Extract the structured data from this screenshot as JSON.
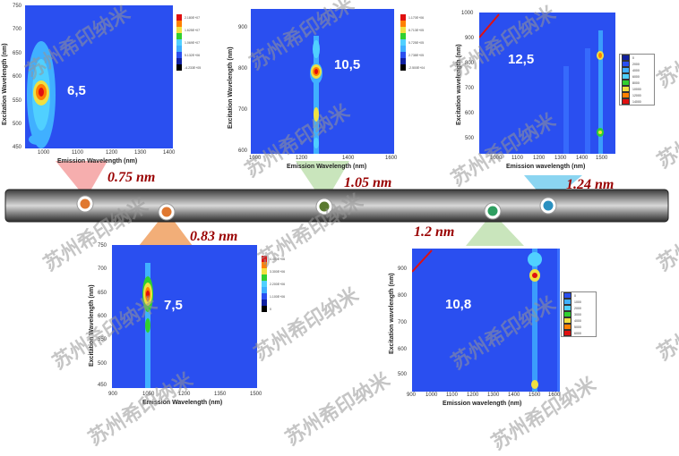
{
  "colors": {
    "tube": "#555555",
    "diameter_text": "#990000",
    "plot_bg": "#2a4ff0"
  },
  "panels": {
    "p65": {
      "chirality": "6,5",
      "diameter": "0.75 nm",
      "xlabel": "Emission Wavelength (nm)",
      "ylabel": "Excitation Wavelength (nm)",
      "xticks": [
        "1000",
        "1100",
        "1200",
        "1300",
        "1400"
      ],
      "yticks": [
        "750",
        "700",
        "650",
        "600",
        "550",
        "500",
        "450"
      ],
      "cbar": [
        "2.180E+07",
        "1.625E+07",
        "1.069E+07",
        "5.132E+06",
        "-4.233E+05"
      ]
    },
    "p75": {
      "chirality": "7,5",
      "diameter": "0.83 nm",
      "xlabel": "Emission Wavelength (nm)",
      "ylabel": "Excitation Wavelength (nm)",
      "xticks": [
        "900",
        "1050",
        "1200",
        "1350",
        "1500"
      ],
      "yticks": [
        "750",
        "700",
        "650",
        "600",
        "550",
        "500",
        "450"
      ],
      "cbar": [
        "4.400E+06",
        "3.300E+06",
        "2.200E+06",
        "1.100E+06",
        "0"
      ]
    },
    "p105": {
      "chirality": "10,5",
      "diameter": "1.05 nm",
      "xlabel": "Emission Wavelength (nm)",
      "ylabel": "Excitation Wavelength (nm)",
      "xticks": [
        "1000",
        "1200",
        "1400",
        "1600"
      ],
      "yticks": [
        "900",
        "800",
        "700",
        "600"
      ],
      "cbar": [
        "1.170E+06",
        "8.713E+05",
        "5.725E+05",
        "2.738E+05",
        "-2.500E+04"
      ]
    },
    "p108": {
      "chirality": "10,8",
      "diameter": "1.2 nm",
      "xlabel": "Emission wavelength (nm)",
      "ylabel": "Excitation wavelength (nm)",
      "xticks": [
        "900",
        "1000",
        "1100",
        "1200",
        "1300",
        "1400",
        "1500",
        "1600"
      ],
      "yticks": [
        "900",
        "800",
        "700",
        "600",
        "500"
      ],
      "legend": [
        "0",
        "1000",
        "2000",
        "3000",
        "4000",
        "5000",
        "6000"
      ]
    },
    "p125": {
      "chirality": "12,5",
      "diameter": "1.24 nm",
      "xlabel": "Emission wavelength (nm)",
      "ylabel": "Excitation wavelength (nm)",
      "xticks": [
        "1000",
        "1100",
        "1200",
        "1300",
        "1400",
        "1500"
      ],
      "yticks": [
        "1000",
        "900",
        "800",
        "700",
        "600",
        "500"
      ],
      "legend": [
        "0",
        "2000",
        "4000",
        "6000",
        "8000",
        "10000",
        "12000",
        "14000"
      ]
    }
  },
  "watermark": "苏州希印纳米"
}
